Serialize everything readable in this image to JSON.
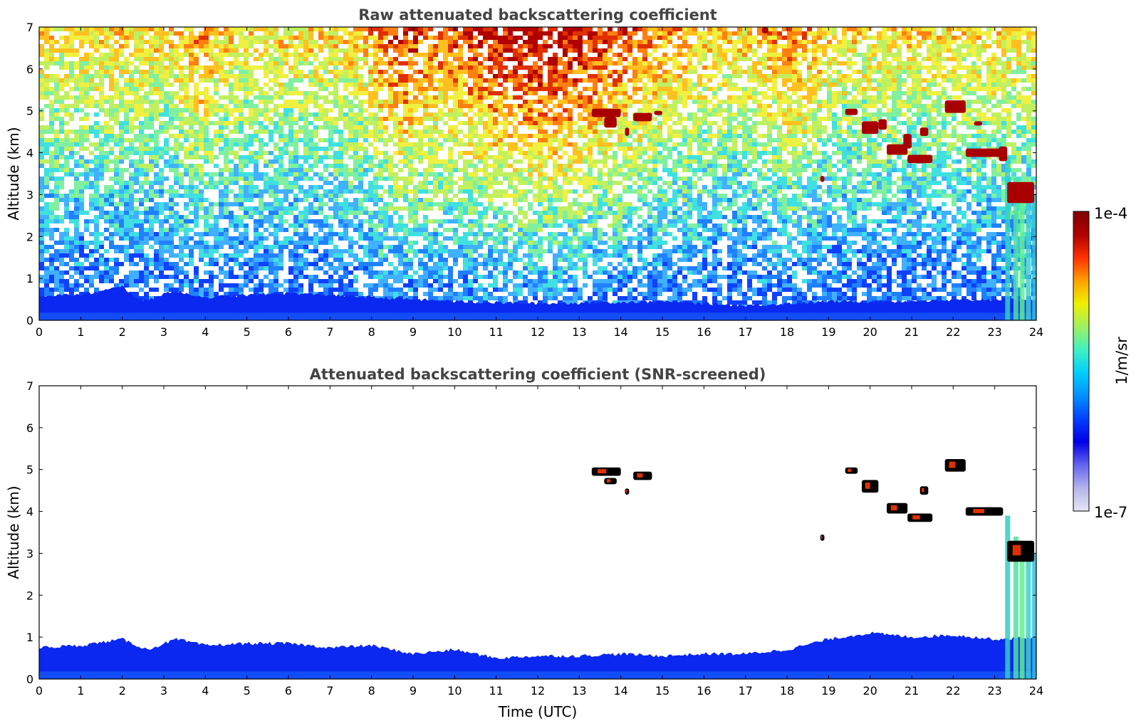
{
  "chart_data": [
    {
      "type": "heatmap",
      "title": "Raw attenuated backscattering coefficient",
      "xlabel": "",
      "ylabel": "Altitude (km)",
      "xlim": [
        0,
        24
      ],
      "ylim": [
        0,
        7
      ],
      "xticks": [
        "0",
        "1",
        "2",
        "3",
        "4",
        "5",
        "6",
        "7",
        "8",
        "9",
        "10",
        "11",
        "12",
        "13",
        "14",
        "15",
        "16",
        "17",
        "18",
        "19",
        "20",
        "21",
        "22",
        "23",
        "24"
      ],
      "yticks": [
        "0",
        "1",
        "2",
        "3",
        "4",
        "5",
        "6",
        "7"
      ],
      "color_scale": "log",
      "boundary_layer_top_km": [
        {
          "t": 0,
          "h": 0.6
        },
        {
          "t": 1,
          "h": 0.6
        },
        {
          "t": 2,
          "h": 0.8
        },
        {
          "t": 2.5,
          "h": 0.45
        },
        {
          "t": 3.2,
          "h": 0.7
        },
        {
          "t": 4,
          "h": 0.55
        },
        {
          "t": 6,
          "h": 0.65
        },
        {
          "t": 8,
          "h": 0.55
        },
        {
          "t": 10,
          "h": 0.45
        },
        {
          "t": 12,
          "h": 0.4
        },
        {
          "t": 15,
          "h": 0.45
        },
        {
          "t": 17,
          "h": 0.35
        },
        {
          "t": 19,
          "h": 0.45
        },
        {
          "t": 21,
          "h": 0.45
        },
        {
          "t": 23,
          "h": 0.5
        },
        {
          "t": 24,
          "h": 0.5
        }
      ],
      "clouds": [
        {
          "t0": 13.3,
          "t1": 14.0,
          "h0": 4.85,
          "h1": 5.05
        },
        {
          "t0": 13.6,
          "t1": 13.9,
          "h0": 4.6,
          "h1": 4.85
        },
        {
          "t0": 14.3,
          "t1": 14.75,
          "h0": 4.75,
          "h1": 4.95
        },
        {
          "t0": 14.1,
          "t1": 14.2,
          "h0": 4.4,
          "h1": 4.6
        },
        {
          "t0": 14.8,
          "t1": 15.0,
          "h0": 4.9,
          "h1": 5.0
        },
        {
          "t0": 17.4,
          "t1": 17.55,
          "h0": 6.85,
          "h1": 7.0
        },
        {
          "t0": 18.8,
          "t1": 18.9,
          "h0": 3.3,
          "h1": 3.45
        },
        {
          "t0": 19.4,
          "t1": 19.7,
          "h0": 4.9,
          "h1": 5.05
        },
        {
          "t0": 19.8,
          "t1": 20.2,
          "h0": 4.45,
          "h1": 4.75
        },
        {
          "t0": 20.2,
          "t1": 20.4,
          "h0": 4.55,
          "h1": 4.8
        },
        {
          "t0": 20.4,
          "t1": 20.9,
          "h0": 3.95,
          "h1": 4.2
        },
        {
          "t0": 20.8,
          "t1": 21.0,
          "h0": 4.1,
          "h1": 4.45
        },
        {
          "t0": 20.9,
          "t1": 21.5,
          "h0": 3.75,
          "h1": 3.95
        },
        {
          "t0": 21.2,
          "t1": 21.4,
          "h0": 4.4,
          "h1": 4.6
        },
        {
          "t0": 21.8,
          "t1": 22.3,
          "h0": 4.95,
          "h1": 5.25
        },
        {
          "t0": 22.5,
          "t1": 22.7,
          "h0": 4.65,
          "h1": 4.75
        },
        {
          "t0": 22.3,
          "t1": 23.2,
          "h0": 3.9,
          "h1": 4.1
        },
        {
          "t0": 23.1,
          "t1": 23.3,
          "h0": 3.8,
          "h1": 4.15
        },
        {
          "t0": 23.3,
          "t1": 23.95,
          "h0": 2.8,
          "h1": 3.3
        }
      ]
    },
    {
      "type": "heatmap",
      "title": "Attenuated backscattering coefficient (SNR-screened)",
      "xlabel": "Time (UTC)",
      "ylabel": "Altitude (km)",
      "xlim": [
        0,
        24
      ],
      "ylim": [
        0,
        7
      ],
      "xticks": [
        "0",
        "1",
        "2",
        "3",
        "4",
        "5",
        "6",
        "7",
        "8",
        "9",
        "10",
        "11",
        "12",
        "13",
        "14",
        "15",
        "16",
        "17",
        "18",
        "19",
        "20",
        "21",
        "22",
        "23",
        "24"
      ],
      "yticks": [
        "0",
        "1",
        "2",
        "3",
        "4",
        "5",
        "6",
        "7"
      ],
      "color_scale": "log",
      "boundary_layer_top_km": [
        {
          "t": 0,
          "h": 0.75
        },
        {
          "t": 1,
          "h": 0.8
        },
        {
          "t": 2,
          "h": 0.95
        },
        {
          "t": 2.6,
          "h": 0.7
        },
        {
          "t": 3.3,
          "h": 0.95
        },
        {
          "t": 4,
          "h": 0.8
        },
        {
          "t": 5,
          "h": 0.85
        },
        {
          "t": 6,
          "h": 0.85
        },
        {
          "t": 7,
          "h": 0.75
        },
        {
          "t": 8,
          "h": 0.8
        },
        {
          "t": 9,
          "h": 0.6
        },
        {
          "t": 10,
          "h": 0.7
        },
        {
          "t": 11,
          "h": 0.5
        },
        {
          "t": 12,
          "h": 0.55
        },
        {
          "t": 13,
          "h": 0.55
        },
        {
          "t": 14,
          "h": 0.6
        },
        {
          "t": 15,
          "h": 0.55
        },
        {
          "t": 16,
          "h": 0.6
        },
        {
          "t": 17,
          "h": 0.6
        },
        {
          "t": 18,
          "h": 0.7
        },
        {
          "t": 19,
          "h": 0.95
        },
        {
          "t": 20,
          "h": 1.1
        },
        {
          "t": 21,
          "h": 1.0
        },
        {
          "t": 22,
          "h": 1.05
        },
        {
          "t": 23,
          "h": 0.95
        },
        {
          "t": 24,
          "h": 1.0
        }
      ],
      "clouds": [
        {
          "t0": 13.3,
          "t1": 14.0,
          "h0": 4.85,
          "h1": 5.05
        },
        {
          "t0": 13.6,
          "t1": 13.9,
          "h0": 4.65,
          "h1": 4.8
        },
        {
          "t0": 14.3,
          "t1": 14.75,
          "h0": 4.75,
          "h1": 4.95
        },
        {
          "t0": 14.1,
          "t1": 14.2,
          "h0": 4.4,
          "h1": 4.55
        },
        {
          "t0": 19.4,
          "t1": 19.7,
          "h0": 4.9,
          "h1": 5.05
        },
        {
          "t0": 19.8,
          "t1": 20.2,
          "h0": 4.45,
          "h1": 4.75
        },
        {
          "t0": 20.4,
          "t1": 20.9,
          "h0": 3.95,
          "h1": 4.2
        },
        {
          "t0": 20.9,
          "t1": 21.5,
          "h0": 3.75,
          "h1": 3.95
        },
        {
          "t0": 21.2,
          "t1": 21.4,
          "h0": 4.4,
          "h1": 4.6
        },
        {
          "t0": 21.8,
          "t1": 22.3,
          "h0": 4.95,
          "h1": 5.25
        },
        {
          "t0": 22.3,
          "t1": 23.2,
          "h0": 3.9,
          "h1": 4.1
        },
        {
          "t0": 18.8,
          "t1": 18.9,
          "h0": 3.3,
          "h1": 3.45
        },
        {
          "t0": 23.3,
          "t1": 23.95,
          "h0": 2.8,
          "h1": 3.3
        }
      ]
    }
  ],
  "colorbar": {
    "label": "1/m/sr",
    "max_label": "1e-4",
    "min_label": "1e-7",
    "colors": [
      "#e6e6f5",
      "#b4b4ec",
      "#6464f0",
      "#0000e6",
      "#0040ff",
      "#0090ff",
      "#00d0ff",
      "#40f0c0",
      "#a0f060",
      "#f0f000",
      "#ffa000",
      "#ff3000",
      "#b00000",
      "#800000"
    ]
  }
}
